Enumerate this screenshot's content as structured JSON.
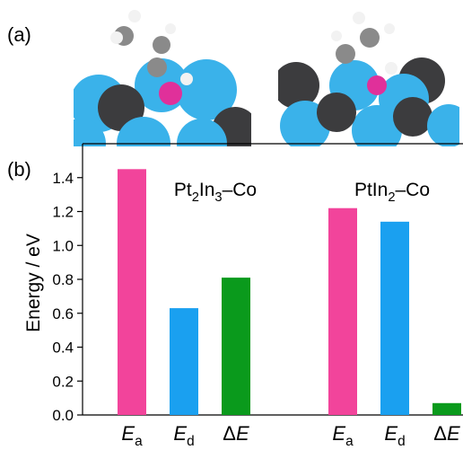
{
  "panel_a_label": "(a)",
  "chart_data": {
    "type": "bar",
    "panel_label": "(b)",
    "y_label": "Energy / eV",
    "ylim": [
      0,
      1.6
    ],
    "yticks": [
      {
        "value": 0,
        "label": "0.0"
      },
      0.2,
      0.4,
      0.6,
      0.8,
      {
        "value": 1,
        "label": "1.0"
      },
      1.2,
      1.4
    ],
    "categories": [
      [
        {
          "text": "Pt"
        },
        {
          "text": "2",
          "sub": true
        },
        {
          "text": "In"
        },
        {
          "text": "3",
          "sub": true
        },
        {
          "text": "–Co"
        }
      ],
      [
        {
          "text": "PtIn"
        },
        {
          "text": "2",
          "sub": true
        },
        {
          "text": "–Co"
        }
      ]
    ],
    "series": [
      {
        "name": [
          {
            "text": "E",
            "italic": true
          },
          {
            "text": "a",
            "sub": true
          }
        ],
        "color": "#f2449b",
        "values": [
          1.45,
          1.22
        ]
      },
      {
        "name": [
          {
            "text": "E",
            "italic": true
          },
          {
            "text": "d",
            "sub": true
          }
        ],
        "color": "#1aa0f0",
        "values": [
          0.63,
          1.14
        ]
      },
      {
        "name": [
          {
            "text": "Δ"
          },
          {
            "text": "E",
            "italic": true
          }
        ],
        "color": "#0a9a1c",
        "values": [
          0.81,
          0.07
        ]
      }
    ]
  }
}
